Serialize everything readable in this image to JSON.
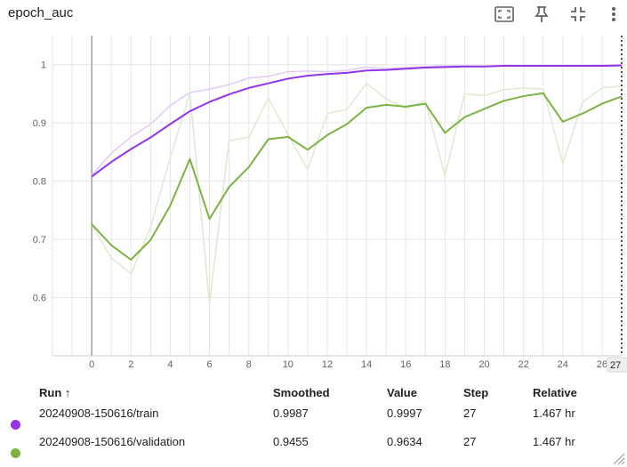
{
  "card": {
    "title": "epoch_auc"
  },
  "toolbar": {
    "icons": [
      "fullscreen-icon",
      "pin-icon",
      "fit-domain-icon",
      "more-vert-icon"
    ]
  },
  "chart_data": {
    "type": "line",
    "title": "epoch_auc",
    "xlabel": "",
    "ylabel": "",
    "xlim": [
      -2,
      27
    ],
    "ylim": [
      0.5,
      1.05
    ],
    "x_ticks": [
      "0",
      "2",
      "4",
      "6",
      "8",
      "10",
      "12",
      "14",
      "16",
      "18",
      "20",
      "22",
      "24",
      "26"
    ],
    "y_ticks": [
      "0.6",
      "0.7",
      "0.8",
      "0.9",
      "1"
    ],
    "grid": true,
    "hover_step_label": "27",
    "x": [
      0,
      1,
      2,
      3,
      4,
      5,
      6,
      7,
      8,
      9,
      10,
      11,
      12,
      13,
      14,
      15,
      16,
      17,
      18,
      19,
      20,
      21,
      22,
      23,
      24,
      25,
      26,
      27
    ],
    "series": [
      {
        "name": "20240908-150616/train",
        "color": "#9334e6",
        "raw_color": "#e3c9f5",
        "raw": [
          0.81,
          0.848,
          0.876,
          0.898,
          0.93,
          0.952,
          0.958,
          0.966,
          0.977,
          0.98,
          0.988,
          0.989,
          0.988,
          0.99,
          0.996,
          0.993,
          0.995,
          0.997,
          0.998,
          0.998,
          0.997,
          0.999,
          0.998,
          0.998,
          0.998,
          0.998,
          0.999,
          0.9997
        ],
        "smoothed": [
          0.808,
          0.833,
          0.855,
          0.875,
          0.898,
          0.92,
          0.936,
          0.949,
          0.96,
          0.968,
          0.976,
          0.981,
          0.984,
          0.986,
          0.99,
          0.991,
          0.993,
          0.995,
          0.996,
          0.997,
          0.997,
          0.998,
          0.998,
          0.998,
          0.998,
          0.998,
          0.998,
          0.9987
        ]
      },
      {
        "name": "20240908-150616/validation",
        "color": "#7cb342",
        "raw_color": "#dcebd0",
        "raw": [
          0.725,
          0.668,
          0.641,
          0.721,
          0.84,
          0.952,
          0.59,
          0.87,
          0.875,
          0.943,
          0.88,
          0.82,
          0.916,
          0.923,
          0.968,
          0.941,
          0.925,
          0.938,
          0.809,
          0.95,
          0.947,
          0.957,
          0.96,
          0.958,
          0.83,
          0.935,
          0.96,
          0.9634
        ],
        "smoothed": [
          0.726,
          0.69,
          0.665,
          0.699,
          0.758,
          0.838,
          0.735,
          0.79,
          0.824,
          0.872,
          0.876,
          0.854,
          0.879,
          0.898,
          0.926,
          0.931,
          0.928,
          0.933,
          0.883,
          0.91,
          0.924,
          0.938,
          0.946,
          0.951,
          0.902,
          0.916,
          0.933,
          0.9455
        ]
      }
    ]
  },
  "table": {
    "headers": {
      "run": "Run ↑",
      "smoothed": "Smoothed",
      "value": "Value",
      "step": "Step",
      "relative": "Relative"
    },
    "rows": [
      {
        "run": "20240908-150616/train",
        "smoothed": "0.9987",
        "value": "0.9997",
        "step": "27",
        "relative": "1.467 hr",
        "color": "#9334e6"
      },
      {
        "run": "20240908-150616/validation",
        "smoothed": "0.9455",
        "value": "0.9634",
        "step": "27",
        "relative": "1.467 hr",
        "color": "#7cb342"
      }
    ]
  }
}
